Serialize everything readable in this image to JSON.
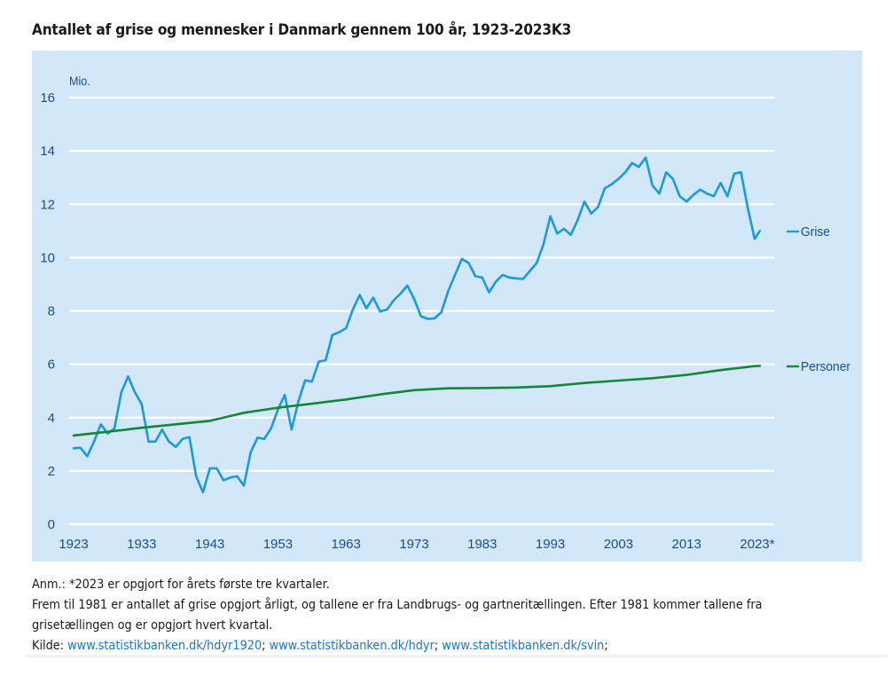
{
  "title": "Antallet af grise og mennesker i Danmark gennem 100 år, 1923-2023K3",
  "chart_data": {
    "type": "line",
    "title": "Antallet af grise og mennesker i Danmark gennem 100 år, 1923-2023K3",
    "ylabel": "Mio.",
    "xlabel": "",
    "ylim": [
      0,
      16
    ],
    "xlim": [
      1923,
      2023.75
    ],
    "yticks": [
      0,
      2,
      4,
      6,
      8,
      10,
      12,
      14,
      16
    ],
    "ytick_labels": [
      "0",
      "2",
      "4",
      "6",
      "8",
      "10",
      "12",
      "14",
      "16"
    ],
    "xticks": [
      1923,
      1933,
      1943,
      1953,
      1963,
      1973,
      1983,
      1993,
      2003,
      2013,
      2023
    ],
    "xtick_labels": [
      "1923",
      "1933",
      "1943",
      "1953",
      "1963",
      "1973",
      "1983",
      "1993",
      "2003",
      "2013",
      "2023*"
    ],
    "grid": "horizontal",
    "legend": "right, inline at line ends",
    "series": [
      {
        "name": "Grise",
        "color": "#1a9ae0",
        "x": [
          1923,
          1924,
          1925,
          1926,
          1927,
          1928,
          1929,
          1930,
          1931,
          1932,
          1933,
          1934,
          1935,
          1936,
          1937,
          1938,
          1939,
          1940,
          1941,
          1942,
          1943,
          1944,
          1945,
          1946,
          1947,
          1948,
          1949,
          1950,
          1951,
          1952,
          1953,
          1954,
          1955,
          1956,
          1957,
          1958,
          1959,
          1960,
          1961,
          1962,
          1963,
          1964,
          1965,
          1966,
          1967,
          1968,
          1969,
          1970,
          1971,
          1972,
          1973,
          1974,
          1975,
          1976,
          1977,
          1978,
          1979,
          1980,
          1981,
          1982,
          1983,
          1984,
          1985,
          1986,
          1987,
          1988,
          1989,
          1990,
          1991,
          1992,
          1993,
          1994,
          1995,
          1996,
          1997,
          1998,
          1999,
          2000,
          2001,
          2002,
          2003,
          2004,
          2005,
          2006,
          2007,
          2008,
          2009,
          2010,
          2011,
          2012,
          2013,
          2014,
          2015,
          2016,
          2017,
          2018,
          2019,
          2020,
          2021,
          2022,
          2023,
          2023.75
        ],
        "values": [
          2.85,
          2.87,
          2.55,
          3.1,
          3.75,
          3.4,
          3.6,
          4.95,
          5.55,
          4.95,
          4.5,
          3.1,
          3.1,
          3.55,
          3.1,
          2.9,
          3.2,
          3.27,
          1.8,
          1.2,
          2.1,
          2.1,
          1.65,
          1.75,
          1.8,
          1.45,
          2.7,
          3.25,
          3.2,
          3.6,
          4.3,
          4.85,
          3.55,
          4.6,
          5.4,
          5.35,
          6.1,
          6.15,
          7.1,
          7.2,
          7.35,
          8.05,
          8.6,
          8.1,
          8.5,
          7.98,
          8.05,
          8.4,
          8.65,
          8.95,
          8.45,
          7.8,
          7.7,
          7.72,
          7.95,
          8.75,
          9.35,
          9.95,
          9.8,
          9.3,
          9.25,
          8.7,
          9.1,
          9.35,
          9.25,
          9.22,
          9.2,
          9.5,
          9.8,
          10.5,
          11.55,
          10.9,
          11.08,
          10.85,
          11.4,
          12.1,
          11.65,
          11.9,
          12.6,
          12.75,
          12.95,
          13.2,
          13.55,
          13.4,
          13.75,
          12.7,
          12.4,
          13.2,
          12.95,
          12.3,
          12.1,
          12.35,
          12.55,
          12.4,
          12.3,
          12.8,
          12.3,
          13.15,
          13.2,
          11.85,
          10.7,
          11.0
        ]
      },
      {
        "name": "Personer",
        "color": "#11873a",
        "x": [
          1923,
          1928,
          1933,
          1938,
          1943,
          1948,
          1953,
          1958,
          1963,
          1968,
          1973,
          1978,
          1983,
          1988,
          1993,
          1998,
          2003,
          2008,
          2013,
          2018,
          2023,
          2023.75
        ],
        "values": [
          3.33,
          3.47,
          3.62,
          3.75,
          3.88,
          4.18,
          4.37,
          4.52,
          4.68,
          4.87,
          5.03,
          5.1,
          5.11,
          5.13,
          5.18,
          5.3,
          5.39,
          5.48,
          5.6,
          5.78,
          5.93,
          5.94
        ]
      }
    ]
  },
  "notes": {
    "line1": "Anm.: *2023 er opgjort for årets første tre kvartaler.",
    "line2": "Frem til 1981 er antallet af grise opgjort årligt, og tallene er fra Landbrugs- og gartneritællingen. Efter 1981 kommer tallene fra",
    "line3": "grisetællingen og er opgjort hvert kvartal.",
    "source_label": "Kilde: ",
    "sources": [
      {
        "text": "www.statistikbanken.dk/hdyr1920",
        "sep": "; "
      },
      {
        "text": "www.statistikbanken.dk/hdyr",
        "sep": "; "
      },
      {
        "text": "www.statistikbanken.dk/svin",
        "sep": ";"
      }
    ]
  }
}
